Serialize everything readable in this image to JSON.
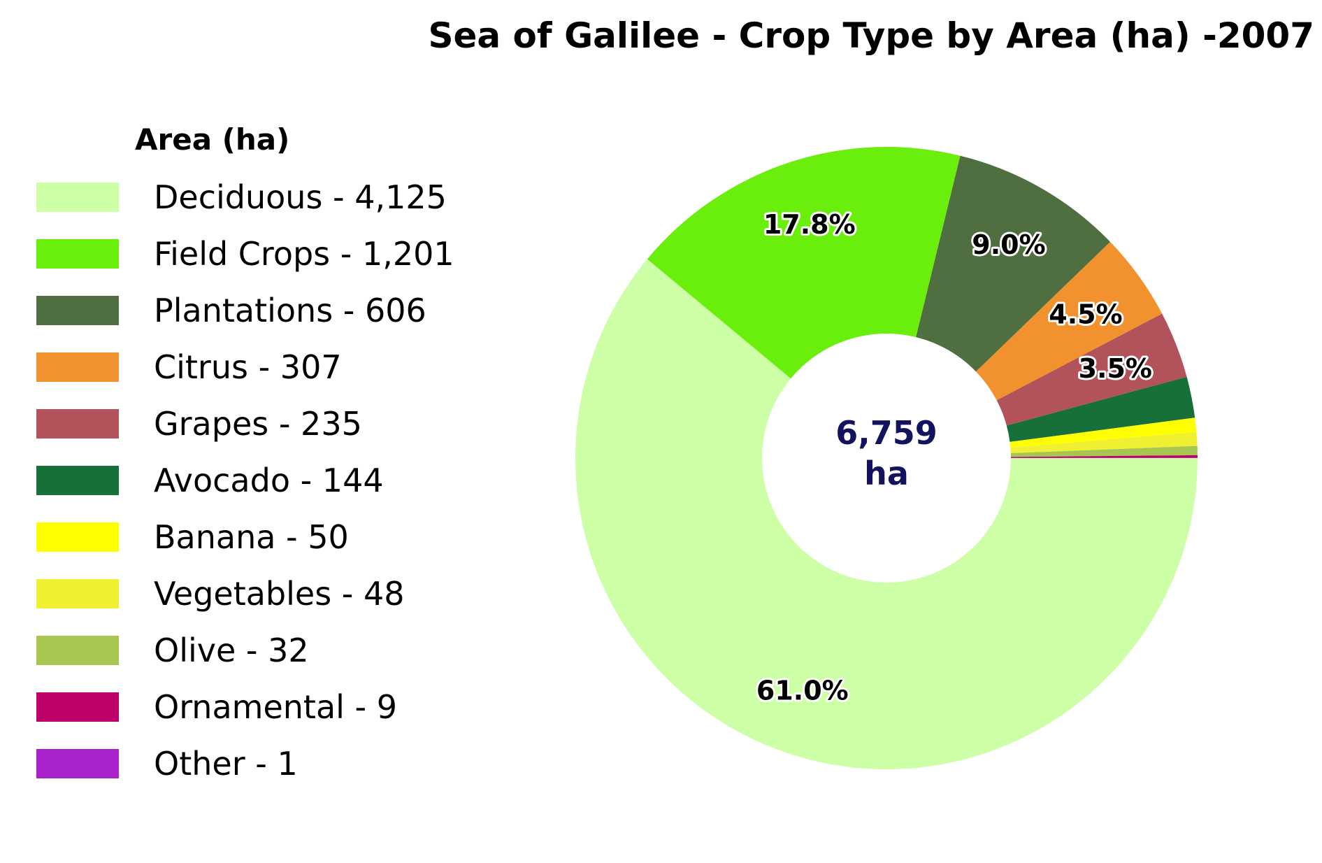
{
  "chart_data": {
    "type": "pie",
    "title": "Sea of Galilee - Crop Type by Area (ha) -2007",
    "legend_title": "Area (ha)",
    "legend_position": "left",
    "center_value": "6,759",
    "center_unit": "ha",
    "categories": [
      "Deciduous",
      "Field Crops",
      "Plantations",
      "Citrus",
      "Grapes",
      "Avocado",
      "Banana",
      "Vegetables",
      "Olive",
      "Ornamental",
      "Other"
    ],
    "values": [
      4125,
      1201,
      606,
      307,
      235,
      144,
      50,
      48,
      32,
      9,
      1
    ],
    "legend_labels": [
      "Deciduous - 4,125",
      "Field Crops - 1,201",
      "Plantations - 606",
      "Citrus - 307",
      "Grapes - 235",
      "Avocado - 144",
      "Banana - 50",
      "Vegetables - 48",
      "Olive - 32",
      "Ornamental - 9",
      "Other - 1"
    ],
    "slice_labels": [
      "61.0%",
      "17.8%",
      "9.0%",
      "4.5%",
      "3.5%",
      "",
      "",
      "",
      "",
      "",
      ""
    ],
    "colors": [
      "#ccffa6",
      "#6aee0b",
      "#506f41",
      "#f2922e",
      "#b2535c",
      "#17703a",
      "#ffff00",
      "#f0f033",
      "#a7c651",
      "#c0006a",
      "#aa22cc"
    ]
  }
}
